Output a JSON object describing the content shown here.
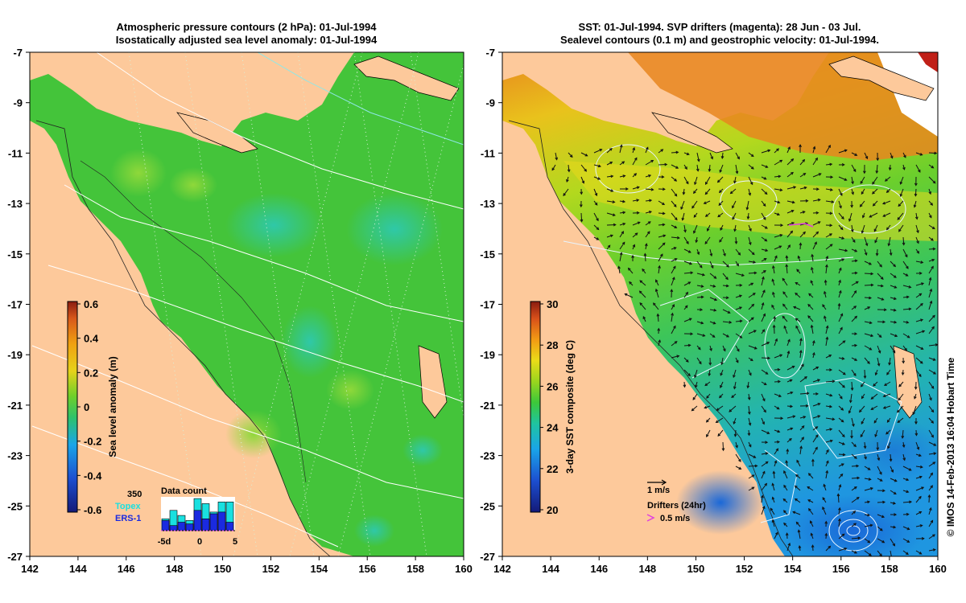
{
  "left_panel": {
    "title_line1": "Atmospheric pressure contours (2 hPa): 01-Jul-1994",
    "title_line2": "Isostatically adjusted sea level anomaly: 01-Jul-1994",
    "colorbar_label": "Sea level anomaly (m)",
    "colorbar_ticks": [
      "0.6",
      "0.4",
      "0.2",
      "0",
      "-0.2",
      "-0.4",
      "-0.6"
    ],
    "data_count": {
      "title": "Data count",
      "max_label": "350",
      "legend_topex": "Topex",
      "legend_ers": "ERS-1",
      "ticks": [
        "-5d",
        "0",
        "5"
      ],
      "topex_bars": [
        0.35,
        0.6,
        0.45,
        0.3,
        0.95,
        0.8,
        0.55,
        0.85,
        0.85
      ],
      "ers_bars": [
        0.3,
        0.15,
        0.25,
        0.2,
        0.6,
        0.35,
        0.5,
        0.55,
        0.25
      ]
    }
  },
  "right_panel": {
    "title_line1": "SST: 01-Jul-1994. SVP drifters (magenta): 28 Jun - 03 Jul.",
    "title_line2": "Sealevel contours (0.1 m) and geostrophic velocity: 01-Jul-1994.",
    "colorbar_label": "3-day SST composite (deg C)",
    "colorbar_ticks": [
      "30",
      "28",
      "26",
      "24",
      "22",
      "20"
    ],
    "velocity_scale_label": "1 m/s",
    "drifters_label": "Drifters (24hr)",
    "drifters_scale_label": "0.5 m/s"
  },
  "axes": {
    "x_ticks": [
      "142",
      "144",
      "146",
      "148",
      "150",
      "152",
      "154",
      "156",
      "158",
      "160"
    ],
    "y_ticks": [
      "-7",
      "-9",
      "-11",
      "-13",
      "-15",
      "-17",
      "-19",
      "-21",
      "-23",
      "-25",
      "-27"
    ]
  },
  "credit": "© IMOS 14-Feb-2013 16:04 Hobart Time",
  "colors": {
    "land": "#fdc99b",
    "sea_level_green": "#44c43a",
    "sst_blue": "#1f9de0",
    "sst_orange": "#e8851e",
    "arrow": "#111111",
    "drifter": "#e040e0"
  }
}
